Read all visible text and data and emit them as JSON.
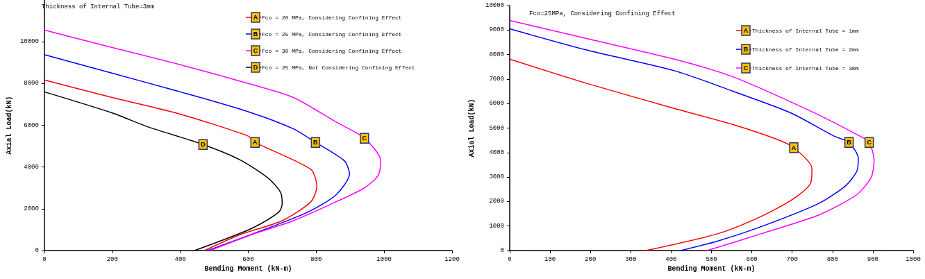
{
  "chart_data": [
    {
      "type": "line",
      "title": "Thickness of Internal Tube=3mm",
      "xlabel": "Bending Moment (kN-m)",
      "ylabel": "Axial Load(kN)",
      "xlim": [
        0,
        1200
      ],
      "xticks": [
        0,
        200,
        400,
        600,
        800,
        1000,
        1200
      ],
      "ylim": [
        0,
        12000
      ],
      "yticks": [
        0,
        2000,
        4000,
        6000,
        8000,
        10000
      ],
      "grid": false,
      "legend": "top right",
      "marker": "none",
      "line_style": "solid",
      "series": [
        {
          "name": "Fco = 20 MPa, Considering Confining Effect",
          "color": "#ff0000",
          "x": [
            0,
            200,
            405,
            600,
            620,
            784,
            802,
            784,
            700,
            574,
            471
          ],
          "values": [
            8170,
            7330,
            6510,
            5480,
            5180,
            3890,
            3070,
            2330,
            1430,
            750,
            0
          ]
        },
        {
          "name": "Fco = 25 MPa, Considering Confining Effect",
          "color": "#0000ff",
          "x": [
            0,
            200,
            400,
            600,
            733,
            798,
            883,
            898,
            858,
            775,
            650,
            481
          ],
          "values": [
            9380,
            8490,
            7600,
            6650,
            5830,
            5180,
            4300,
            3670,
            2660,
            1840,
            1020,
            0
          ]
        },
        {
          "name": "Fco = 30 MPa, Considering Confining Effect",
          "color": "#ff00ff",
          "x": [
            0,
            200,
            400,
            600,
            733,
            858,
            942,
            990,
            983,
            942,
            858,
            733,
            608,
            487
          ],
          "values": [
            10560,
            9720,
            8900,
            8000,
            7330,
            6160,
            5380,
            4300,
            3610,
            3000,
            2330,
            1430,
            750,
            0
          ]
        },
        {
          "name": "Fco = 25 MPa, Not Considering Confining Effect",
          "color": "#000000",
          "x": [
            0,
            200,
            304,
            467,
            574,
            658,
            695,
            700,
            690,
            613,
            531,
            442
          ],
          "values": [
            7600,
            6590,
            5930,
            5080,
            4360,
            3480,
            2790,
            2250,
            1840,
            1080,
            540,
            0
          ]
        }
      ],
      "annotations": [
        {
          "text": "A",
          "x": 620,
          "y": 5180
        },
        {
          "text": "B",
          "x": 798,
          "y": 5180
        },
        {
          "text": "C",
          "x": 942,
          "y": 5380
        },
        {
          "text": "D",
          "x": 467,
          "y": 5080
        }
      ]
    },
    {
      "type": "line",
      "title": "Fco=25MPa, Considering Confining Effect",
      "xlabel": "Bending Moment (kN-m)",
      "ylabel": "Axial Load(kN)",
      "xlim": [
        0,
        1000
      ],
      "xticks": [
        0,
        100,
        200,
        300,
        400,
        500,
        600,
        700,
        800,
        900,
        1000
      ],
      "ylim": [
        0,
        10000
      ],
      "yticks": [
        0,
        1000,
        2000,
        3000,
        4000,
        5000,
        6000,
        7000,
        8000,
        9000,
        10000
      ],
      "grid": false,
      "legend": "top right",
      "marker": "none",
      "line_style": "solid",
      "series": [
        {
          "name": "Thickness of Internal Tube = 1mm",
          "color": "#ff0000",
          "x": [
            0,
            194,
            408,
            552,
            659,
            704,
            749,
            746,
            702,
            624,
            516,
            337
          ],
          "values": [
            7810,
            6810,
            5800,
            5150,
            4560,
            4200,
            3350,
            2760,
            2100,
            1400,
            690,
            0
          ]
        },
        {
          "name": "Thickness of Internal Tube = 2mm",
          "color": "#0000ff",
          "x": [
            0,
            194,
            408,
            552,
            695,
            803,
            841,
            864,
            860,
            832,
            767,
            624,
            516,
            424
          ],
          "values": [
            9050,
            8170,
            7340,
            6510,
            5630,
            4680,
            4410,
            3760,
            3230,
            2640,
            1930,
            980,
            390,
            0
          ]
        },
        {
          "name": "Thickness of Internal Tube = 3mm",
          "color": "#ff00ff",
          "x": [
            0,
            194,
            408,
            552,
            746,
            867,
            891,
            903,
            896,
            860,
            767,
            624,
            489
          ],
          "values": [
            9390,
            8640,
            7810,
            7100,
            5690,
            4680,
            4410,
            3700,
            2990,
            2280,
            1460,
            690,
            0
          ]
        }
      ],
      "annotations": [
        {
          "text": "A",
          "x": 704,
          "y": 4200
        },
        {
          "text": "B",
          "x": 841,
          "y": 4410
        },
        {
          "text": "C",
          "x": 891,
          "y": 4410
        }
      ]
    }
  ]
}
